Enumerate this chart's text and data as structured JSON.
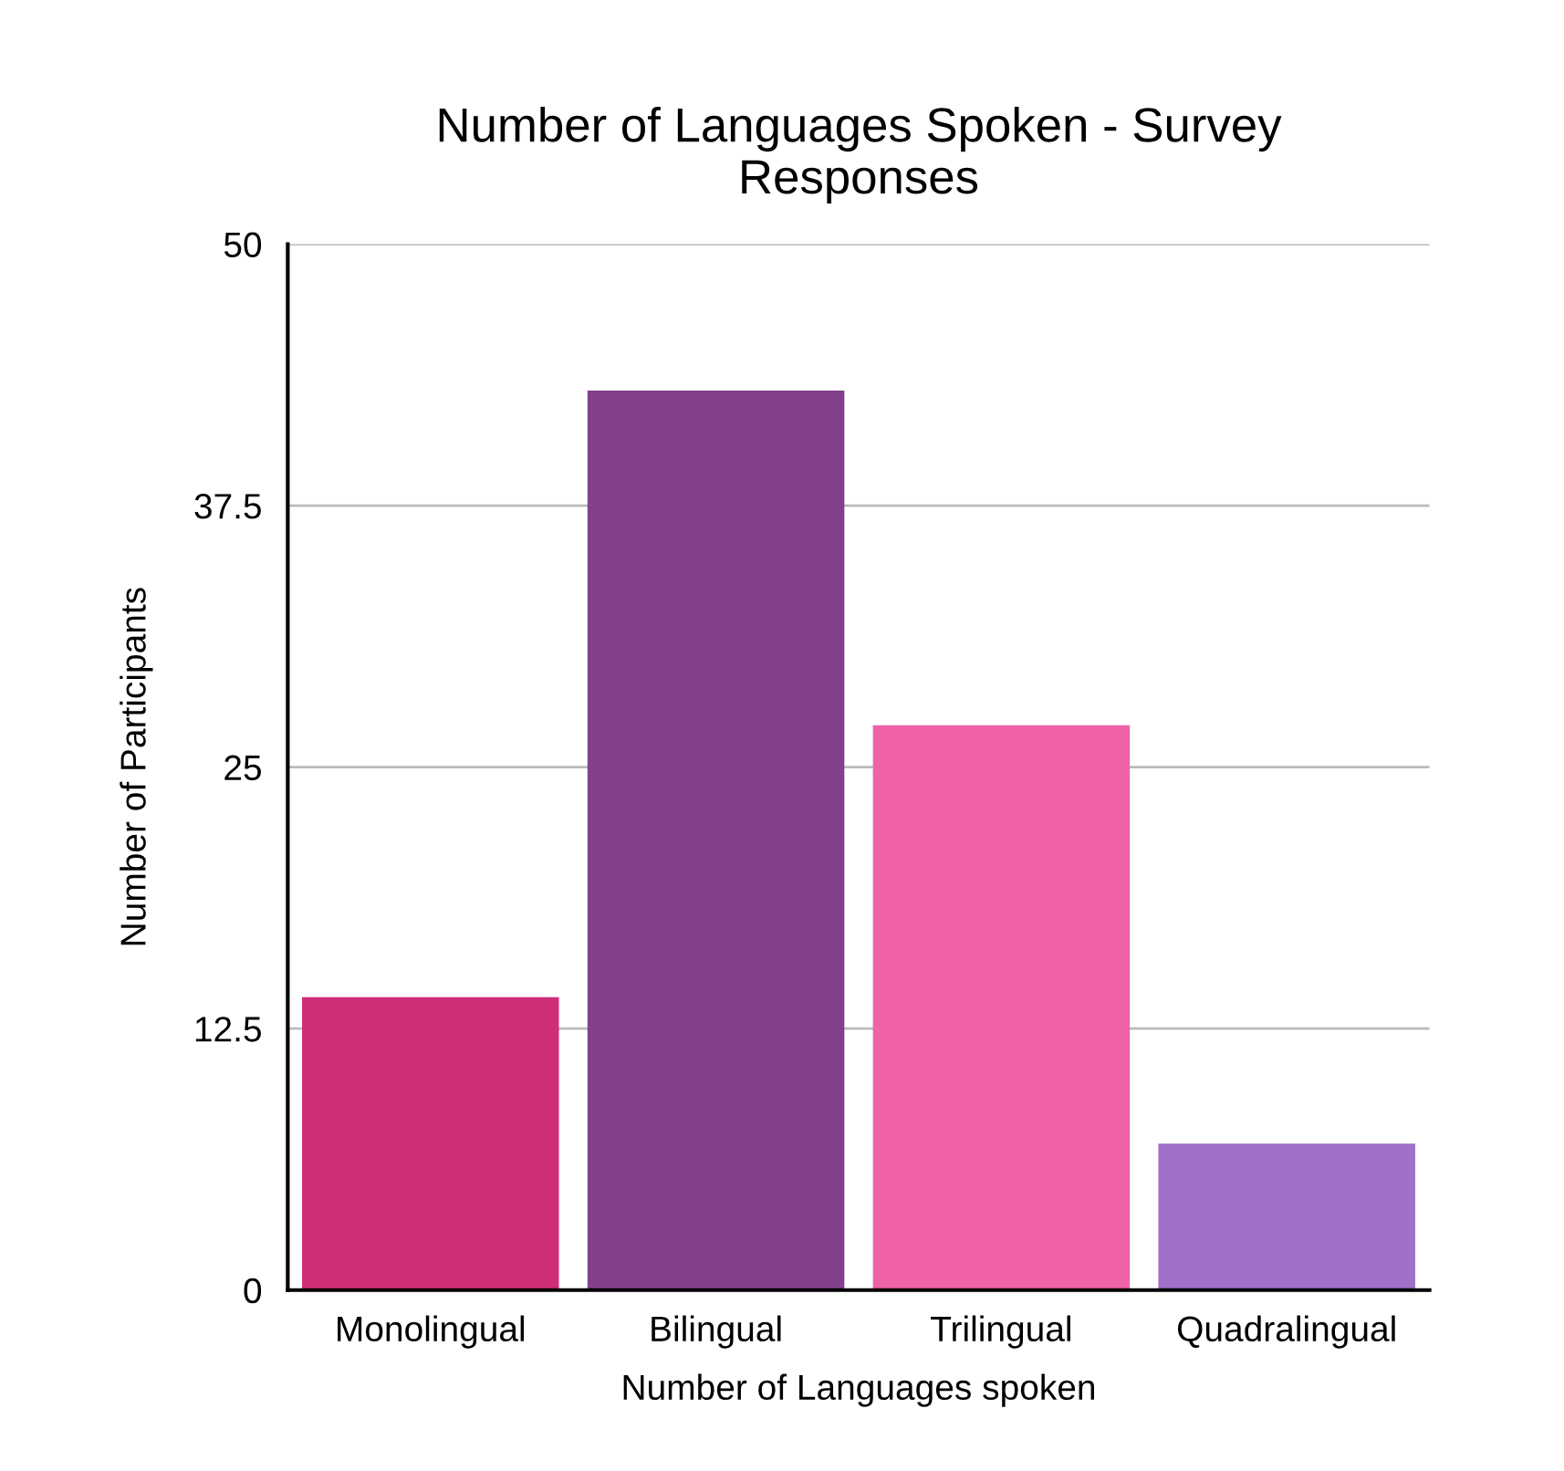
{
  "chart_data": {
    "type": "bar",
    "title": "Number of Languages Spoken - Survey\nResponses",
    "xlabel": "Number of Languages spoken",
    "ylabel": "Number of Participants",
    "categories": [
      "Monolingual",
      "Bilingual",
      "Trilingual",
      "Quadralingual"
    ],
    "values": [
      14,
      43,
      27,
      7
    ],
    "colors": [
      "#cf2e77",
      "#83418c",
      "#f062a6",
      "#a070c8"
    ],
    "ylim": [
      0,
      50
    ],
    "yticks": [
      0,
      12.5,
      25,
      37.5,
      50
    ],
    "grid": "y",
    "legend": false
  }
}
